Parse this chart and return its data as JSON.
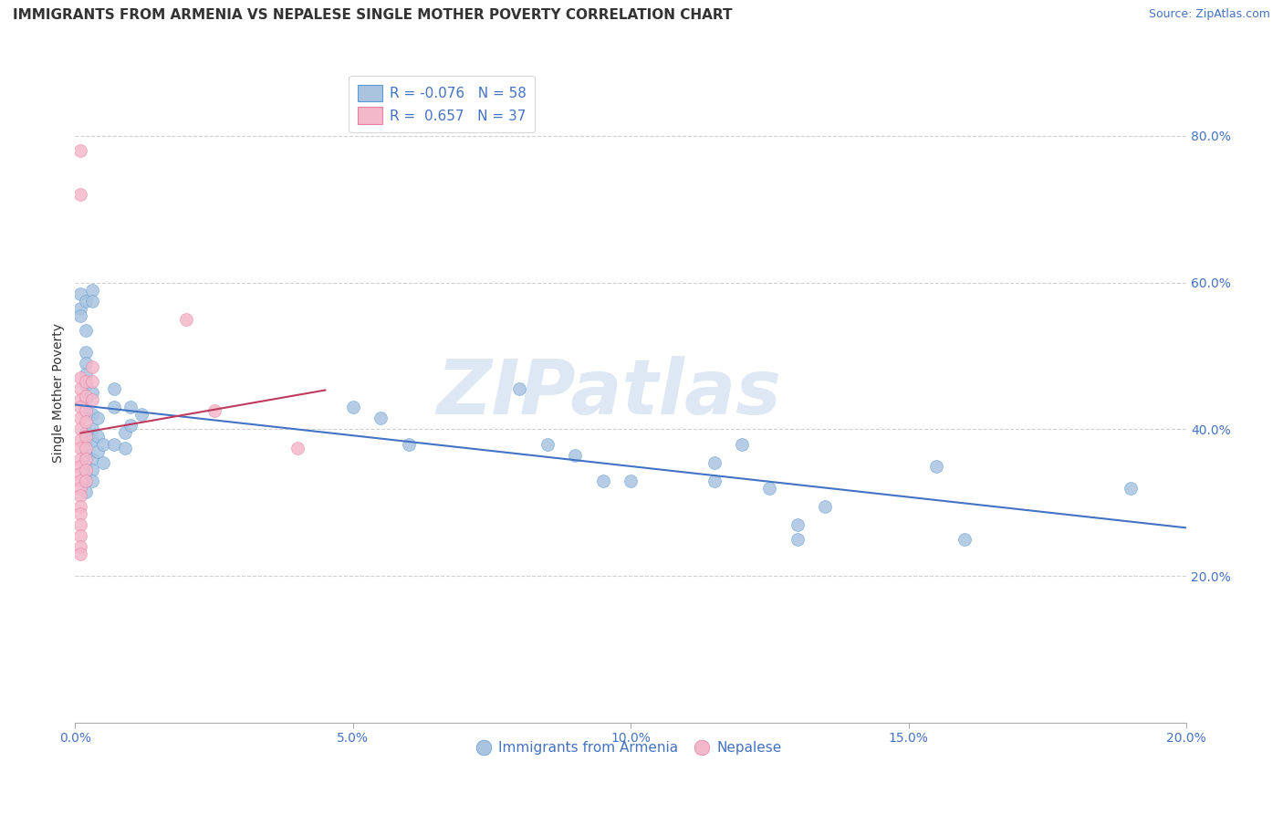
{
  "title": "IMMIGRANTS FROM ARMENIA VS NEPALESE SINGLE MOTHER POVERTY CORRELATION CHART",
  "source": "Source: ZipAtlas.com",
  "ylabel": "Single Mother Poverty",
  "watermark": "ZIPatlas",
  "xlim": [
    0.0,
    0.2
  ],
  "ylim": [
    0.0,
    0.9
  ],
  "xticks": [
    0.0,
    0.05,
    0.1,
    0.15,
    0.2
  ],
  "yticks": [
    0.2,
    0.4,
    0.6,
    0.8
  ],
  "xticklabels": [
    "0.0%",
    "5.0%",
    "10.0%",
    "15.0%",
    "20.0%"
  ],
  "yticklabels": [
    "20.0%",
    "40.0%",
    "60.0%",
    "80.0%"
  ],
  "blue_color": "#aac4e0",
  "pink_color": "#f4b8cb",
  "blue_edge_color": "#5b9bd5",
  "pink_edge_color": "#e87ea1",
  "blue_line_color": "#4472c4",
  "pink_line_color": "#c0395e",
  "blue_scatter": [
    [
      0.001,
      0.585
    ],
    [
      0.001,
      0.565
    ],
    [
      0.001,
      0.555
    ],
    [
      0.002,
      0.575
    ],
    [
      0.002,
      0.535
    ],
    [
      0.002,
      0.505
    ],
    [
      0.002,
      0.49
    ],
    [
      0.002,
      0.475
    ],
    [
      0.002,
      0.46
    ],
    [
      0.002,
      0.44
    ],
    [
      0.002,
      0.425
    ],
    [
      0.002,
      0.395
    ],
    [
      0.002,
      0.38
    ],
    [
      0.002,
      0.365
    ],
    [
      0.002,
      0.35
    ],
    [
      0.002,
      0.34
    ],
    [
      0.002,
      0.33
    ],
    [
      0.002,
      0.315
    ],
    [
      0.003,
      0.59
    ],
    [
      0.003,
      0.575
    ],
    [
      0.003,
      0.45
    ],
    [
      0.003,
      0.42
    ],
    [
      0.003,
      0.4
    ],
    [
      0.003,
      0.385
    ],
    [
      0.003,
      0.36
    ],
    [
      0.003,
      0.345
    ],
    [
      0.003,
      0.33
    ],
    [
      0.004,
      0.415
    ],
    [
      0.004,
      0.39
    ],
    [
      0.004,
      0.37
    ],
    [
      0.005,
      0.38
    ],
    [
      0.005,
      0.355
    ],
    [
      0.007,
      0.455
    ],
    [
      0.007,
      0.43
    ],
    [
      0.007,
      0.38
    ],
    [
      0.009,
      0.395
    ],
    [
      0.009,
      0.375
    ],
    [
      0.01,
      0.43
    ],
    [
      0.01,
      0.405
    ],
    [
      0.012,
      0.42
    ],
    [
      0.05,
      0.43
    ],
    [
      0.055,
      0.415
    ],
    [
      0.06,
      0.38
    ],
    [
      0.08,
      0.455
    ],
    [
      0.085,
      0.38
    ],
    [
      0.09,
      0.365
    ],
    [
      0.095,
      0.33
    ],
    [
      0.1,
      0.33
    ],
    [
      0.115,
      0.355
    ],
    [
      0.115,
      0.33
    ],
    [
      0.12,
      0.38
    ],
    [
      0.125,
      0.32
    ],
    [
      0.13,
      0.27
    ],
    [
      0.13,
      0.25
    ],
    [
      0.135,
      0.295
    ],
    [
      0.155,
      0.35
    ],
    [
      0.16,
      0.25
    ],
    [
      0.19,
      0.32
    ]
  ],
  "pink_scatter": [
    [
      0.001,
      0.78
    ],
    [
      0.001,
      0.72
    ],
    [
      0.001,
      0.47
    ],
    [
      0.001,
      0.455
    ],
    [
      0.001,
      0.44
    ],
    [
      0.001,
      0.43
    ],
    [
      0.001,
      0.415
    ],
    [
      0.001,
      0.4
    ],
    [
      0.001,
      0.385
    ],
    [
      0.001,
      0.375
    ],
    [
      0.001,
      0.36
    ],
    [
      0.001,
      0.35
    ],
    [
      0.001,
      0.34
    ],
    [
      0.001,
      0.33
    ],
    [
      0.001,
      0.32
    ],
    [
      0.001,
      0.31
    ],
    [
      0.001,
      0.295
    ],
    [
      0.001,
      0.285
    ],
    [
      0.001,
      0.27
    ],
    [
      0.001,
      0.255
    ],
    [
      0.001,
      0.24
    ],
    [
      0.001,
      0.23
    ],
    [
      0.002,
      0.465
    ],
    [
      0.002,
      0.445
    ],
    [
      0.002,
      0.425
    ],
    [
      0.002,
      0.41
    ],
    [
      0.002,
      0.39
    ],
    [
      0.002,
      0.375
    ],
    [
      0.002,
      0.36
    ],
    [
      0.002,
      0.345
    ],
    [
      0.002,
      0.33
    ],
    [
      0.003,
      0.485
    ],
    [
      0.003,
      0.465
    ],
    [
      0.003,
      0.44
    ],
    [
      0.02,
      0.55
    ],
    [
      0.025,
      0.425
    ],
    [
      0.04,
      0.375
    ]
  ],
  "bg_color": "#ffffff",
  "grid_color": "#d0d0d0",
  "title_fontsize": 11,
  "axis_fontsize": 10,
  "tick_fontsize": 10,
  "watermark_fontsize": 60,
  "watermark_color": "#c8d8ee",
  "watermark_alpha": 0.6,
  "legend_label1": "R = -0.076   N = 58",
  "legend_label2": "R =  0.657   N = 37",
  "bottom_legend1": "Immigrants from Armenia",
  "bottom_legend2": "Nepalese"
}
